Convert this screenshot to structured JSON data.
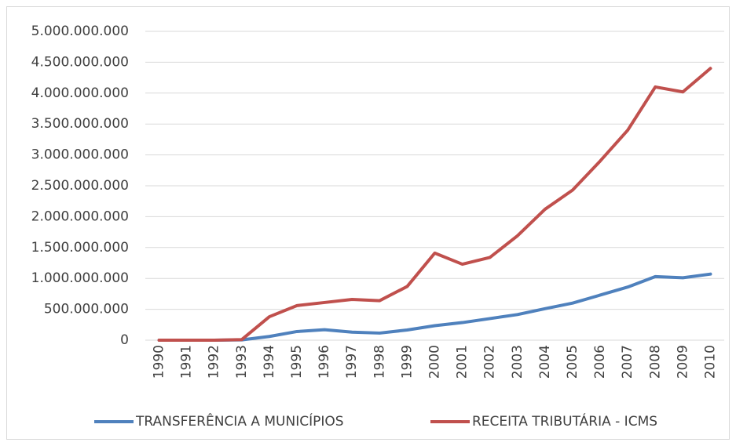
{
  "chart_data": {
    "type": "line",
    "categories": [
      "1990",
      "1991",
      "1992",
      "1993",
      "1994",
      "1995",
      "1996",
      "1997",
      "1998",
      "1999",
      "2000",
      "2001",
      "2002",
      "2003",
      "2004",
      "2005",
      "2006",
      "2007",
      "2008",
      "2009",
      "2010"
    ],
    "series": [
      {
        "name": "TRANSFERÊNCIA A MUNICÍPIOS",
        "color": "#4f81bd",
        "values": [
          0,
          0,
          0,
          5000000,
          60000000,
          140000000,
          170000000,
          130000000,
          115000000,
          165000000,
          235000000,
          285000000,
          350000000,
          415000000,
          510000000,
          600000000,
          730000000,
          860000000,
          1030000000,
          1010000000,
          1070000000
        ]
      },
      {
        "name": "RECEITA TRIBUTÁRIA - ICMS",
        "color": "#c0504d",
        "values": [
          0,
          0,
          0,
          10000000,
          380000000,
          560000000,
          610000000,
          660000000,
          640000000,
          870000000,
          1410000000,
          1230000000,
          1340000000,
          1690000000,
          2120000000,
          2430000000,
          2900000000,
          3400000000,
          4100000000,
          4020000000,
          4400000000
        ]
      }
    ],
    "ylim": [
      0,
      5000000000
    ],
    "yticks": [
      0,
      {
        "value": 500000000,
        "label": "500.000.000"
      },
      {
        "value": 1000000000,
        "label": "1.000.000.000"
      },
      {
        "value": 1500000000,
        "label": "1.500.000.000"
      },
      {
        "value": 2000000000,
        "label": "2.000.000.000"
      },
      {
        "value": 2500000000,
        "label": "2.500.000.000"
      },
      {
        "value": 3000000000,
        "label": "3.000.000.000"
      },
      {
        "value": 3500000000,
        "label": "3.500.000.000"
      },
      {
        "value": 4000000000,
        "label": "4.000.000.000"
      },
      {
        "value": 4500000000,
        "label": "4.500.000.000"
      },
      {
        "value": 5000000000,
        "label": "5.000.000.000"
      }
    ],
    "grid": true,
    "legend": "bottom"
  }
}
